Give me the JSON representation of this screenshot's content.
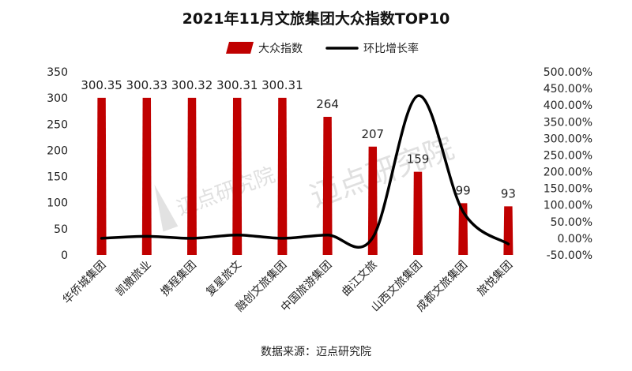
{
  "chart_data": {
    "type": "bar",
    "title": "2021年11月文旅集团大众指数TOP10",
    "source": "数据来源：迈点研究院",
    "watermark": "迈点研究院",
    "categories": [
      "华侨城集团",
      "凯撒旅业",
      "携程集团",
      "复星旅文",
      "融创文旅集团",
      "中国旅游集团",
      "曲江文旅",
      "山西文旅集团",
      "成都文旅集团",
      "旅悦集团"
    ],
    "series": [
      {
        "name": "大众指数",
        "type": "bar",
        "axis": "left",
        "color": "#c00000",
        "values": [
          300.35,
          300.33,
          300.32,
          300.31,
          300.31,
          264,
          207,
          159,
          99,
          93
        ],
        "labels": [
          "300.35",
          "300.33",
          "300.32",
          "300.31",
          "300.31",
          "264",
          "207",
          "159",
          "99",
          "93"
        ]
      },
      {
        "name": "环比增长率",
        "type": "line",
        "axis": "right",
        "color": "#000000",
        "values": [
          0,
          6,
          0,
          10,
          0,
          10,
          2,
          428,
          80,
          -17
        ]
      }
    ],
    "y_left": {
      "min": 0,
      "max": 350,
      "ticks": [
        "0",
        "50",
        "100",
        "150",
        "200",
        "250",
        "300",
        "350"
      ]
    },
    "y_right": {
      "min": -50,
      "max": 500,
      "ticks": [
        "-50.00%",
        "0.00%",
        "50.00%",
        "100.00%",
        "150.00%",
        "200.00%",
        "250.00%",
        "300.00%",
        "350.00%",
        "400.00%",
        "450.00%",
        "500.00%"
      ]
    },
    "legend_position": "top-center",
    "grid": false
  }
}
